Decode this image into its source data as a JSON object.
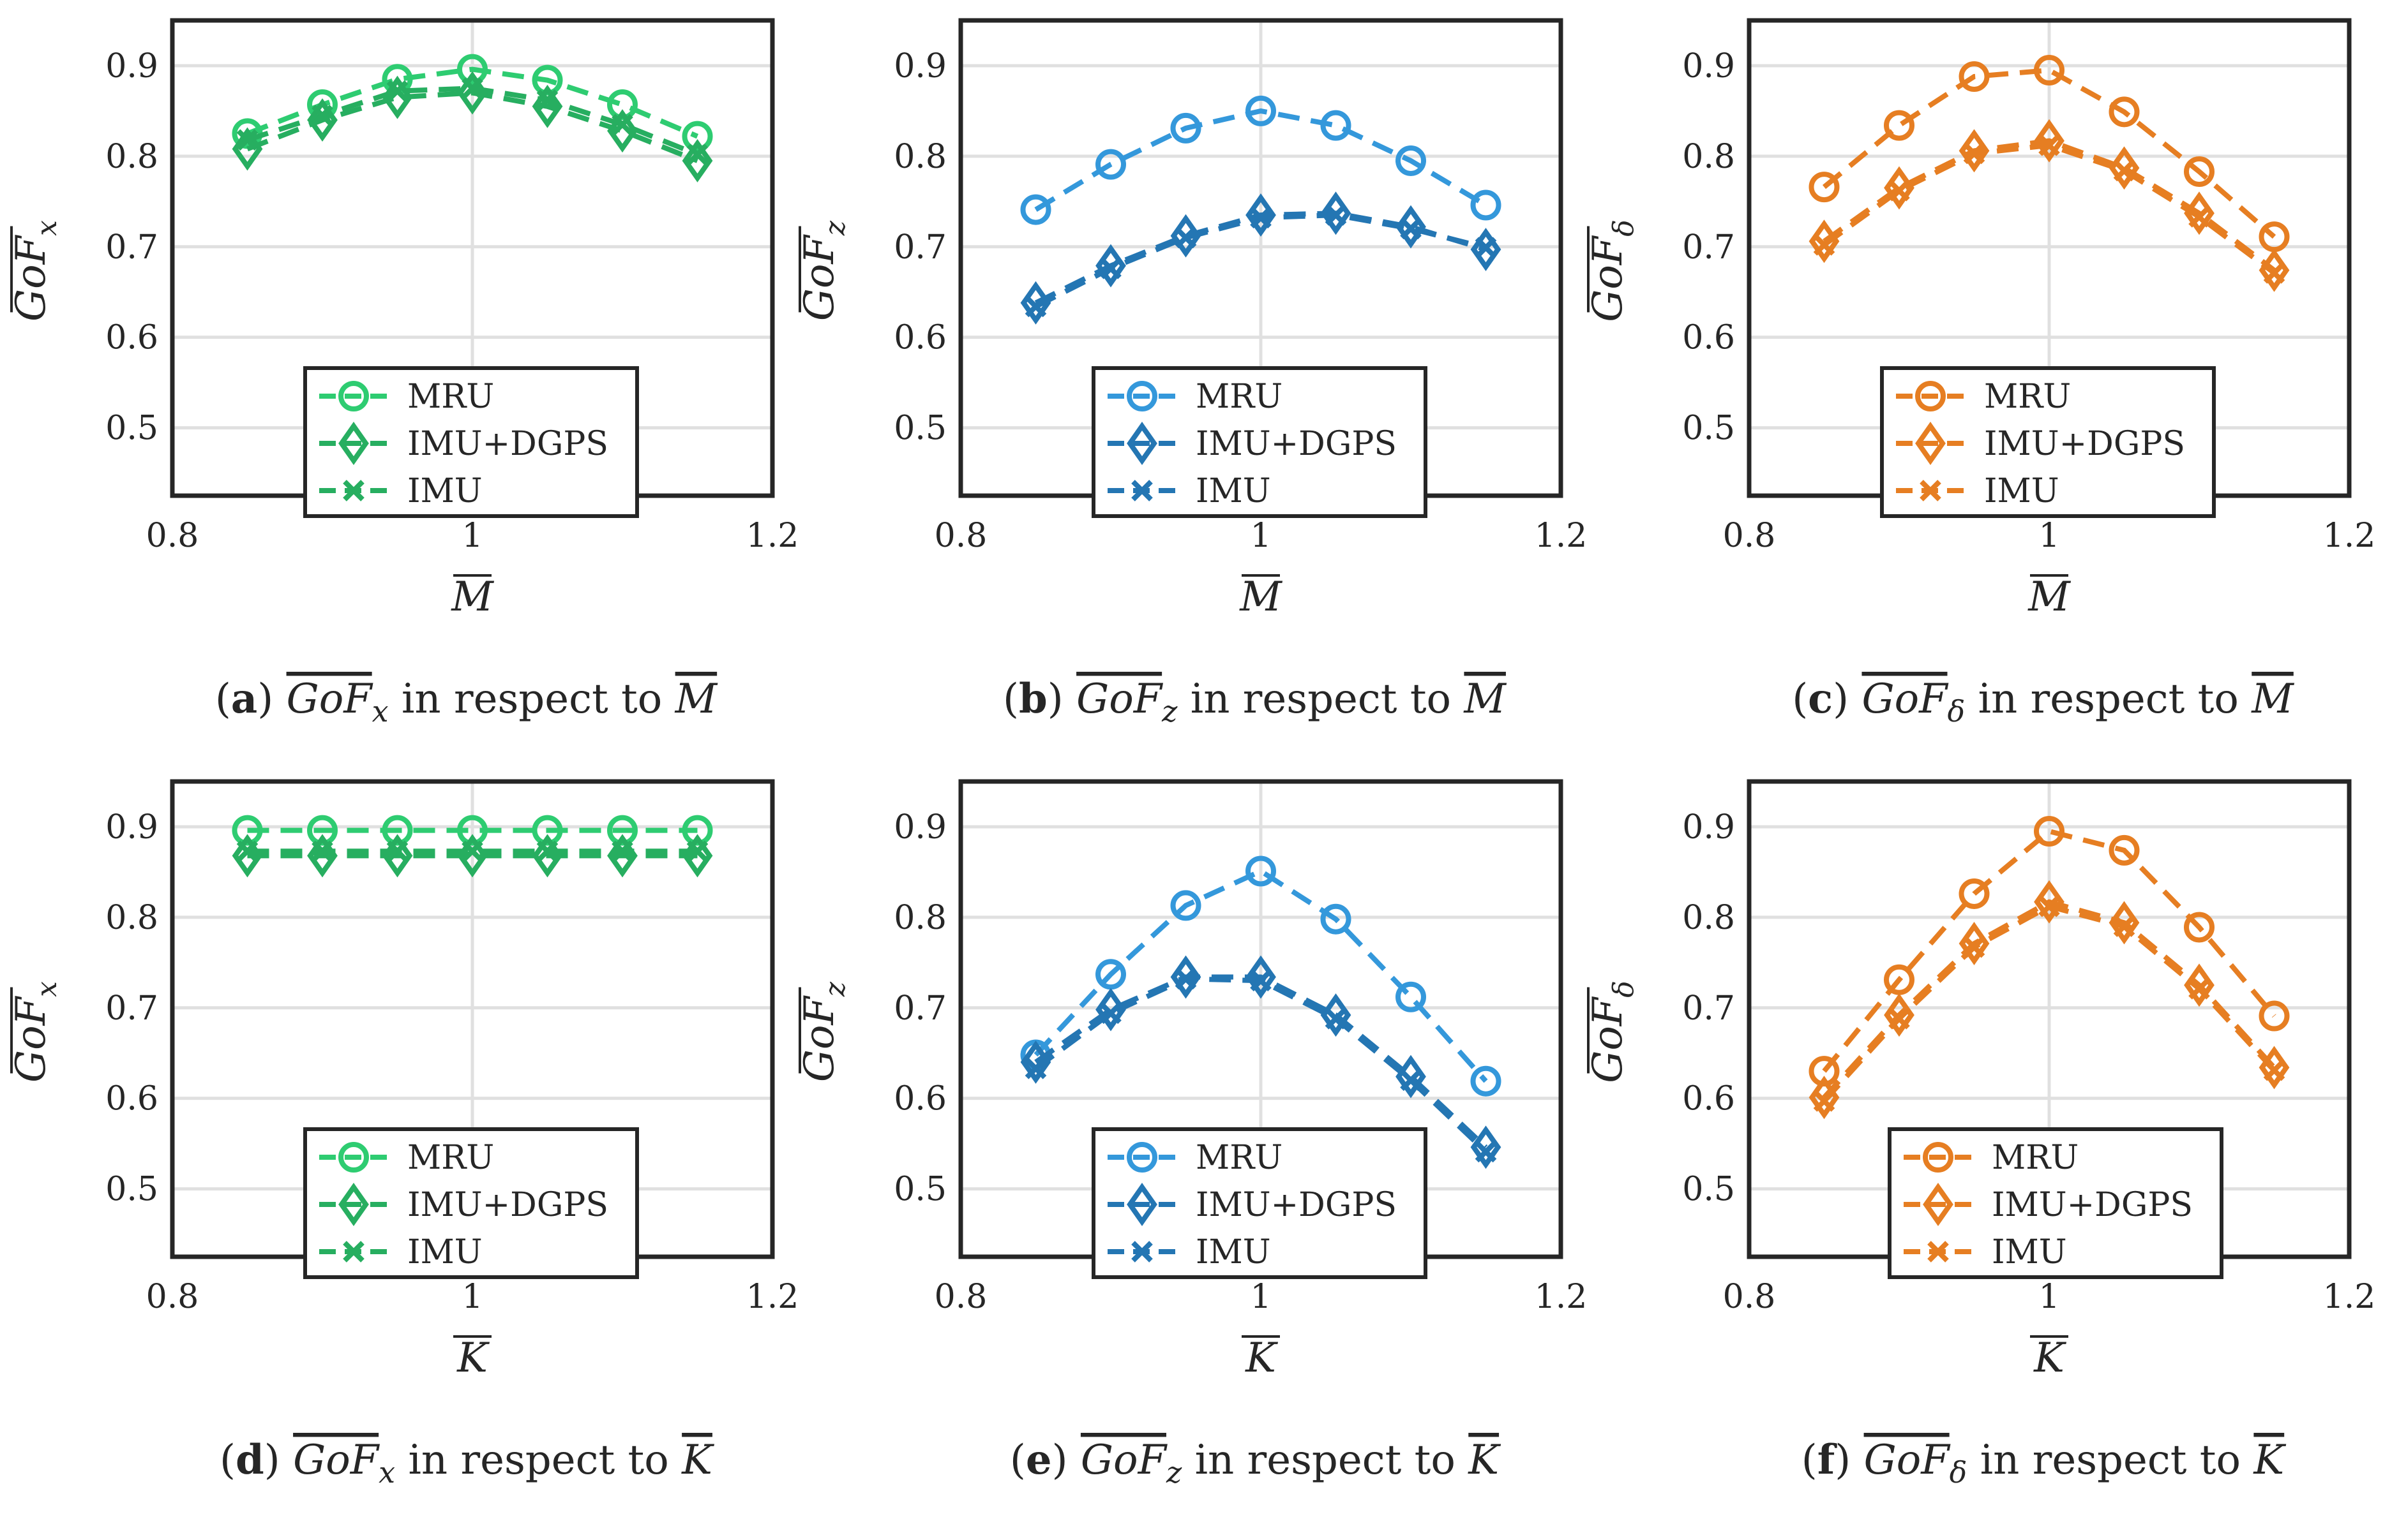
{
  "figure": {
    "series_names": [
      "MRU",
      "IMU+DGPS",
      "IMU"
    ],
    "markers": {
      "MRU": "circle",
      "IMU+DGPS": "diamond",
      "IMU": "x"
    }
  },
  "chart_data": [
    {
      "type": "line",
      "panel": "a",
      "caption_letter": "a",
      "caption_lhs": "GoF",
      "caption_sub": "x",
      "caption_mid": " in respect to ",
      "caption_rhs": "M",
      "ylabel": "GoF",
      "ylabel_sub": "x",
      "xlabel": "M",
      "xlim": [
        0.8,
        1.2
      ],
      "ylim": [
        0.425,
        0.95
      ],
      "xticks": [
        0.8,
        1,
        1.2
      ],
      "xtick_labels": [
        "0.8",
        "1",
        "1.2"
      ],
      "yticks": [
        0.5,
        0.6,
        0.7,
        0.8,
        0.9
      ],
      "ytick_labels": [
        "0.5",
        "0.6",
        "0.7",
        "0.8",
        "0.9"
      ],
      "grid": true,
      "legend_loc": "lower-center",
      "colors": {
        "MRU": "#2ecc71",
        "IMU+DGPS": "#27ae60",
        "IMU": "#27ae60"
      },
      "x": [
        0.85,
        0.9,
        0.95,
        1.0,
        1.05,
        1.1,
        1.15
      ],
      "series": [
        {
          "name": "MRU",
          "values": [
            0.825,
            0.857,
            0.885,
            0.896,
            0.884,
            0.857,
            0.822
          ]
        },
        {
          "name": "IMU+DGPS",
          "values": [
            0.808,
            0.84,
            0.865,
            0.87,
            0.855,
            0.828,
            0.795
          ]
        },
        {
          "name": "IMU",
          "values": [
            0.818,
            0.845,
            0.872,
            0.875,
            0.862,
            0.835,
            0.802
          ]
        }
      ]
    },
    {
      "type": "line",
      "panel": "b",
      "caption_letter": "b",
      "caption_lhs": "GoF",
      "caption_sub": "z",
      "caption_mid": " in respect to ",
      "caption_rhs": "M",
      "ylabel": "GoF",
      "ylabel_sub": "z",
      "xlabel": "M",
      "xlim": [
        0.8,
        1.2
      ],
      "ylim": [
        0.425,
        0.95
      ],
      "xticks": [
        0.8,
        1,
        1.2
      ],
      "xtick_labels": [
        "0.8",
        "1",
        "1.2"
      ],
      "yticks": [
        0.5,
        0.6,
        0.7,
        0.8,
        0.9
      ],
      "ytick_labels": [
        "0.5",
        "0.6",
        "0.7",
        "0.8",
        "0.9"
      ],
      "grid": true,
      "legend_loc": "lower-center",
      "colors": {
        "MRU": "#3498db",
        "IMU+DGPS": "#2476b3",
        "IMU": "#2476b3"
      },
      "x": [
        0.85,
        0.9,
        0.95,
        1.0,
        1.05,
        1.1,
        1.15
      ],
      "series": [
        {
          "name": "MRU",
          "values": [
            0.741,
            0.791,
            0.831,
            0.85,
            0.834,
            0.795,
            0.746
          ]
        },
        {
          "name": "IMU+DGPS",
          "values": [
            0.638,
            0.679,
            0.712,
            0.735,
            0.737,
            0.722,
            0.697
          ]
        },
        {
          "name": "IMU",
          "values": [
            0.634,
            0.676,
            0.71,
            0.732,
            0.735,
            0.72,
            0.699
          ]
        }
      ]
    },
    {
      "type": "line",
      "panel": "c",
      "caption_letter": "c",
      "caption_lhs": "GoF",
      "caption_sub": "δ",
      "caption_mid": " in respect to ",
      "caption_rhs": "M",
      "ylabel": "GoF",
      "ylabel_sub": "δ",
      "xlabel": "M",
      "xlim": [
        0.8,
        1.2
      ],
      "ylim": [
        0.425,
        0.95
      ],
      "xticks": [
        0.8,
        1,
        1.2
      ],
      "xtick_labels": [
        "0.8",
        "1",
        "1.2"
      ],
      "yticks": [
        0.5,
        0.6,
        0.7,
        0.8,
        0.9
      ],
      "ytick_labels": [
        "0.5",
        "0.6",
        "0.7",
        "0.8",
        "0.9"
      ],
      "grid": true,
      "legend_loc": "lower-center",
      "colors": {
        "MRU": "#e67e22",
        "IMU+DGPS": "#e67e22",
        "IMU": "#e67e22"
      },
      "x": [
        0.85,
        0.9,
        0.95,
        1.0,
        1.05,
        1.1,
        1.15
      ],
      "series": [
        {
          "name": "MRU",
          "values": [
            0.766,
            0.834,
            0.888,
            0.895,
            0.849,
            0.783,
            0.711
          ]
        },
        {
          "name": "IMU+DGPS",
          "values": [
            0.706,
            0.765,
            0.806,
            0.817,
            0.787,
            0.737,
            0.674
          ]
        },
        {
          "name": "IMU",
          "values": [
            0.702,
            0.762,
            0.803,
            0.812,
            0.784,
            0.733,
            0.671
          ]
        }
      ]
    },
    {
      "type": "line",
      "panel": "d",
      "caption_letter": "d",
      "caption_lhs": "GoF",
      "caption_sub": "x",
      "caption_mid": " in respect to ",
      "caption_rhs": "K",
      "ylabel": "GoF",
      "ylabel_sub": "x",
      "xlabel": "K",
      "xlim": [
        0.8,
        1.2
      ],
      "ylim": [
        0.425,
        0.95
      ],
      "xticks": [
        0.8,
        1,
        1.2
      ],
      "xtick_labels": [
        "0.8",
        "1",
        "1.2"
      ],
      "yticks": [
        0.5,
        0.6,
        0.7,
        0.8,
        0.9
      ],
      "ytick_labels": [
        "0.5",
        "0.6",
        "0.7",
        "0.8",
        "0.9"
      ],
      "grid": true,
      "legend_loc": "lower-center",
      "colors": {
        "MRU": "#2ecc71",
        "IMU+DGPS": "#27ae60",
        "IMU": "#27ae60"
      },
      "x": [
        0.85,
        0.9,
        0.95,
        1.0,
        1.05,
        1.1,
        1.15
      ],
      "series": [
        {
          "name": "MRU",
          "values": [
            0.896,
            0.896,
            0.896,
            0.896,
            0.896,
            0.896,
            0.896
          ]
        },
        {
          "name": "IMU+DGPS",
          "values": [
            0.868,
            0.868,
            0.868,
            0.868,
            0.868,
            0.868,
            0.868
          ]
        },
        {
          "name": "IMU",
          "values": [
            0.873,
            0.873,
            0.873,
            0.873,
            0.873,
            0.873,
            0.873
          ]
        }
      ]
    },
    {
      "type": "line",
      "panel": "e",
      "caption_letter": "e",
      "caption_lhs": "GoF",
      "caption_sub": "z",
      "caption_mid": " in respect to ",
      "caption_rhs": "K",
      "ylabel": "GoF",
      "ylabel_sub": "z",
      "xlabel": "K",
      "xlim": [
        0.8,
        1.2
      ],
      "ylim": [
        0.425,
        0.95
      ],
      "xticks": [
        0.8,
        1,
        1.2
      ],
      "xtick_labels": [
        "0.8",
        "1",
        "1.2"
      ],
      "yticks": [
        0.5,
        0.6,
        0.7,
        0.8,
        0.9
      ],
      "ytick_labels": [
        "0.5",
        "0.6",
        "0.7",
        "0.8",
        "0.9"
      ],
      "grid": true,
      "legend_loc": "lower-center",
      "colors": {
        "MRU": "#3498db",
        "IMU+DGPS": "#2476b3",
        "IMU": "#2476b3"
      },
      "x": [
        0.85,
        0.9,
        0.95,
        1.0,
        1.05,
        1.1,
        1.15
      ],
      "series": [
        {
          "name": "MRU",
          "values": [
            0.648,
            0.737,
            0.813,
            0.851,
            0.798,
            0.712,
            0.619
          ]
        },
        {
          "name": "IMU+DGPS",
          "values": [
            0.64,
            0.698,
            0.734,
            0.734,
            0.692,
            0.624,
            0.546
          ]
        },
        {
          "name": "IMU",
          "values": [
            0.633,
            0.694,
            0.732,
            0.73,
            0.688,
            0.62,
            0.541
          ]
        }
      ]
    },
    {
      "type": "line",
      "panel": "f",
      "caption_letter": "f",
      "caption_lhs": "GoF",
      "caption_sub": "δ",
      "caption_mid": " in respect to ",
      "caption_rhs": "K",
      "ylabel": "GoF",
      "ylabel_sub": "δ",
      "xlabel": "K",
      "xlim": [
        0.8,
        1.2
      ],
      "ylim": [
        0.425,
        0.95
      ],
      "xticks": [
        0.8,
        1,
        1.2
      ],
      "xtick_labels": [
        "0.8",
        "1",
        "1.2"
      ],
      "yticks": [
        0.5,
        0.6,
        0.7,
        0.8,
        0.9
      ],
      "ytick_labels": [
        "0.5",
        "0.6",
        "0.7",
        "0.8",
        "0.9"
      ],
      "grid": true,
      "legend_loc": "lower-right",
      "colors": {
        "MRU": "#e67e22",
        "IMU+DGPS": "#e67e22",
        "IMU": "#e67e22"
      },
      "x": [
        0.85,
        0.9,
        0.95,
        1.0,
        1.05,
        1.1,
        1.15
      ],
      "series": [
        {
          "name": "MRU",
          "values": [
            0.63,
            0.731,
            0.826,
            0.895,
            0.874,
            0.789,
            0.691
          ]
        },
        {
          "name": "IMU+DGPS",
          "values": [
            0.601,
            0.692,
            0.771,
            0.817,
            0.794,
            0.725,
            0.634
          ]
        },
        {
          "name": "IMU",
          "values": [
            0.597,
            0.688,
            0.767,
            0.812,
            0.79,
            0.721,
            0.631
          ]
        }
      ]
    }
  ]
}
